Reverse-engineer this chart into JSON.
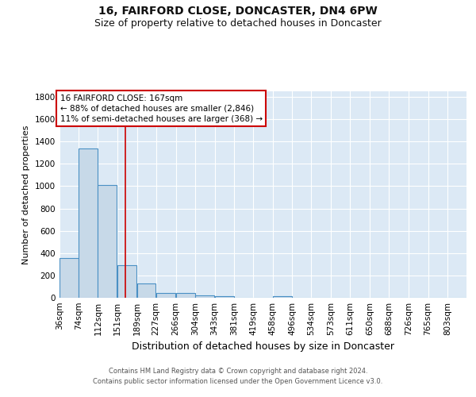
{
  "title1": "16, FAIRFORD CLOSE, DONCASTER, DN4 6PW",
  "title2": "Size of property relative to detached houses in Doncaster",
  "xlabel": "Distribution of detached houses by size in Doncaster",
  "ylabel": "Number of detached properties",
  "bin_labels": [
    "36sqm",
    "74sqm",
    "112sqm",
    "151sqm",
    "189sqm",
    "227sqm",
    "266sqm",
    "304sqm",
    "343sqm",
    "381sqm",
    "419sqm",
    "458sqm",
    "496sqm",
    "534sqm",
    "573sqm",
    "611sqm",
    "650sqm",
    "688sqm",
    "726sqm",
    "765sqm",
    "803sqm"
  ],
  "bin_edges": [
    36,
    74,
    112,
    151,
    189,
    227,
    266,
    304,
    343,
    381,
    419,
    458,
    496,
    534,
    573,
    611,
    650,
    688,
    726,
    765,
    803
  ],
  "bar_heights": [
    355,
    1340,
    1010,
    290,
    130,
    43,
    43,
    22,
    15,
    0,
    0,
    15,
    0,
    0,
    0,
    0,
    0,
    0,
    0,
    0,
    0
  ],
  "bar_color": "#c7d9e8",
  "bar_edgecolor": "#4a90c4",
  "property_line_x": 167,
  "property_line_color": "#cc0000",
  "annotation_text": "16 FAIRFORD CLOSE: 167sqm\n← 88% of detached houses are smaller (2,846)\n11% of semi-detached houses are larger (368) →",
  "annotation_box_color": "#ffffff",
  "annotation_box_edgecolor": "#cc0000",
  "ylim": [
    0,
    1850
  ],
  "yticks": [
    0,
    200,
    400,
    600,
    800,
    1000,
    1200,
    1400,
    1600,
    1800
  ],
  "background_color": "#dce9f5",
  "footer_line1": "Contains HM Land Registry data © Crown copyright and database right 2024.",
  "footer_line2": "Contains public sector information licensed under the Open Government Licence v3.0.",
  "title1_fontsize": 10,
  "title2_fontsize": 9,
  "xlabel_fontsize": 9,
  "ylabel_fontsize": 8,
  "tick_fontsize": 7.5,
  "footer_fontsize": 6
}
